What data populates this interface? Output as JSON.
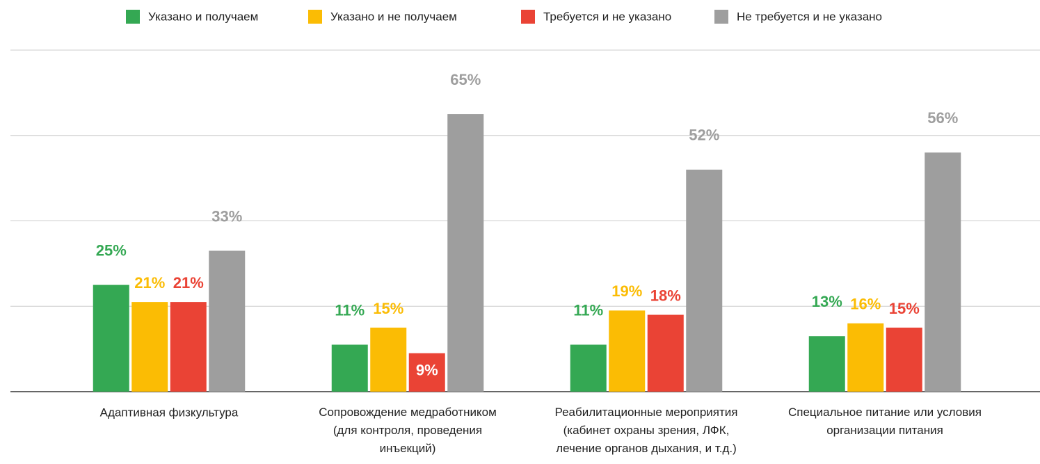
{
  "chart_data": {
    "type": "bar",
    "categories": [
      "Адаптивная физкультура",
      "Сопровождение медработником\n(для контроля, проведения\nинъекций)",
      "Реабилитационные мероприятия\n(кабинет охраны зрения, ЛФК,\nлечение органов дыхания, и т.д.)",
      "Специальное питание или условия\nорганизации питания"
    ],
    "series": [
      {
        "name": "Указано и получаем",
        "color": "#34a853",
        "values": [
          25,
          11,
          11,
          13
        ],
        "value_labels": [
          "25%",
          "11%",
          "11%",
          "13%"
        ]
      },
      {
        "name": "Указано и не получаем",
        "color": "#fbbc04",
        "values": [
          21,
          15,
          19,
          16
        ],
        "value_labels": [
          "21%",
          "15%",
          "19%",
          "16%"
        ]
      },
      {
        "name": "Требуется и не указано",
        "color": "#ea4335",
        "values": [
          21,
          9,
          18,
          15
        ],
        "value_labels": [
          "21%",
          "9%",
          "18%",
          "15%"
        ]
      },
      {
        "name": "Не требуется и не указано",
        "color": "#9e9e9e",
        "values": [
          33,
          65,
          52,
          56
        ],
        "value_labels": [
          "33%",
          "65%",
          "52%",
          "56%"
        ]
      }
    ],
    "ylim": [
      0,
      80
    ],
    "yticks": [
      0,
      20,
      40,
      60,
      80
    ],
    "grid": true,
    "legend": "top"
  }
}
